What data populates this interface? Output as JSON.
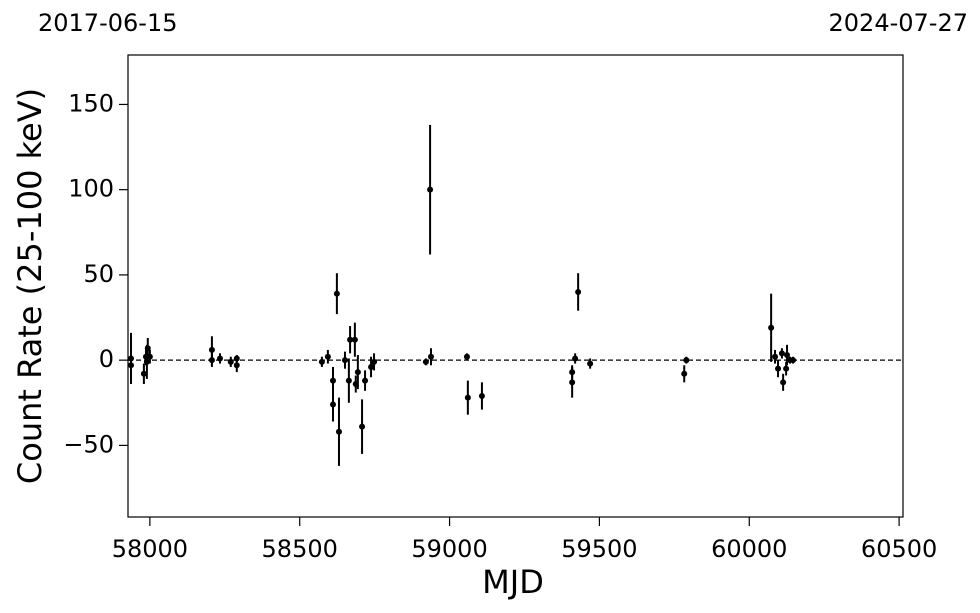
{
  "chart_data": {
    "type": "errorbar",
    "xlabel": "MJD",
    "ylabel": "Count Rate (25-100 keV)",
    "top_left_label": "2017-06-15",
    "top_right_label": "2024-07-27",
    "color": "#000000",
    "hline": 0,
    "xlim": [
      57927,
      60513
    ],
    "ylim": [
      -92,
      179
    ],
    "xticks": [
      58000,
      58500,
      59000,
      59500,
      60000,
      60500
    ],
    "yticks": [
      {
        "value": -50,
        "label": "−50"
      },
      0,
      50,
      100,
      150
    ],
    "x": [
      57937,
      57937,
      57980,
      57987,
      57993,
      57990,
      58000,
      58207,
      58207,
      58234,
      58270,
      58290,
      58290,
      58574,
      58594,
      58611,
      58611,
      58624,
      58631,
      58651,
      58664,
      58668,
      58684,
      58687,
      58694,
      58708,
      58718,
      58738,
      58748,
      58921,
      58935,
      58938,
      59058,
      59061,
      59108,
      59409,
      59409,
      59419,
      59429,
      59469,
      59783,
      59790,
      60073,
      60086,
      60096,
      60109,
      60113,
      60123,
      60126,
      60136,
      60146
    ],
    "values": [
      1,
      -3,
      -8,
      2,
      7,
      -1,
      2,
      6,
      0,
      1,
      -1,
      -3,
      1,
      -1,
      2,
      -26,
      -12,
      39,
      -42,
      0,
      -12,
      12,
      12,
      -14,
      -7,
      -39,
      -12,
      -4,
      -1,
      -1,
      100,
      2,
      2,
      -22,
      -21,
      -7,
      -13,
      1,
      40,
      -2,
      -8,
      0,
      19,
      2,
      -5,
      4,
      -13,
      -5,
      3,
      0,
      0
    ],
    "errors": [
      15,
      10,
      6,
      5,
      6,
      10,
      4,
      8,
      4,
      3,
      3,
      4,
      2,
      3,
      4,
      10,
      8,
      12,
      20,
      5,
      13,
      8,
      10,
      5,
      10,
      16,
      6,
      6,
      5,
      2,
      38,
      5,
      2,
      10,
      8,
      4,
      9,
      3,
      11,
      3,
      5,
      2,
      20,
      4,
      5,
      3,
      5,
      4,
      6,
      2,
      2
    ]
  }
}
